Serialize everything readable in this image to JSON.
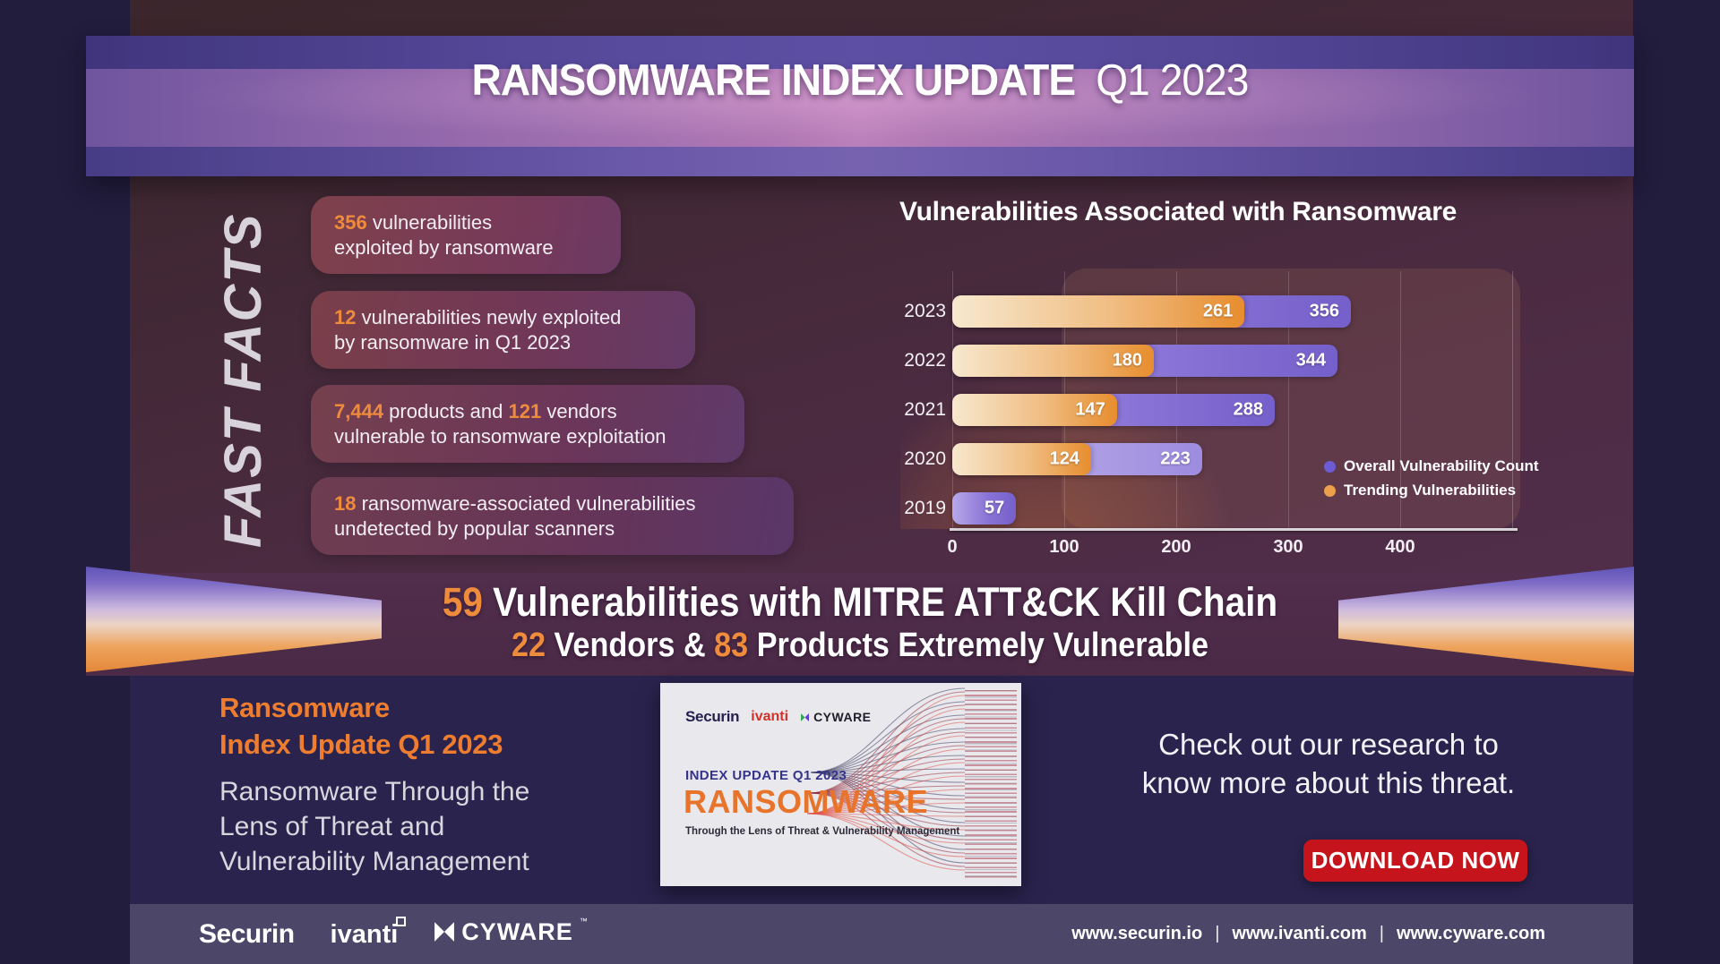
{
  "colors": {
    "accent_orange": "#ef8c3c",
    "button_red": "#c6141d",
    "bar_overall_purple": "#7b64cf",
    "bar_trending_orange": "#e89036",
    "header_purple": "#b078b4",
    "background_navy": "#221c3d",
    "bottom_indigo": "#2a234e",
    "footer_slate": "#4c4669"
  },
  "header": {
    "title_main": "RANSOMWARE INDEX UPDATE",
    "title_qualifier": "Q1 2023"
  },
  "fast_facts": {
    "label": "FAST FACTS",
    "boxes": [
      {
        "lines": [
          [
            {
              "t": "356",
              "hl": true
            },
            {
              "t": " vulnerabilities",
              "hl": false
            }
          ],
          [
            {
              "t": "exploited by ransomware",
              "hl": false
            }
          ]
        ]
      },
      {
        "lines": [
          [
            {
              "t": "12",
              "hl": true
            },
            {
              "t": " vulnerabilities newly exploited",
              "hl": false
            }
          ],
          [
            {
              "t": "by ransomware in Q1 2023",
              "hl": false
            }
          ]
        ]
      },
      {
        "lines": [
          [
            {
              "t": "7,444",
              "hl": true
            },
            {
              "t": " products and ",
              "hl": false
            },
            {
              "t": "121",
              "hl": true
            },
            {
              "t": " vendors",
              "hl": false
            }
          ],
          [
            {
              "t": "vulnerable to ransomware exploitation",
              "hl": false
            }
          ]
        ]
      },
      {
        "lines": [
          [
            {
              "t": "18",
              "hl": true
            },
            {
              "t": " ransomware-associated vulnerabilities",
              "hl": false
            }
          ],
          [
            {
              "t": "undetected by popular scanners",
              "hl": false
            }
          ]
        ]
      }
    ]
  },
  "chart_data": {
    "type": "bar",
    "orientation": "horizontal",
    "title": "Vulnerabilities Associated with Ransomware",
    "categories": [
      "2023",
      "2022",
      "2021",
      "2020",
      "2019"
    ],
    "series": [
      {
        "name": "Overall Vulnerability Count",
        "color": "#7b64cf",
        "values": [
          356,
          344,
          288,
          223,
          57
        ]
      },
      {
        "name": "Trending Vulnerabilities",
        "color": "#e89036",
        "values": [
          261,
          180,
          147,
          124,
          null
        ]
      }
    ],
    "xlim": [
      0,
      500
    ],
    "x_ticks": [
      0,
      100,
      200,
      300,
      400
    ],
    "grid": true,
    "legend_position": "right-middle",
    "value_labels": true
  },
  "kill_chain": {
    "line1": [
      {
        "t": "59",
        "hl": true
      },
      {
        "t": " Vulnerabilities with MITRE ATT&CK Kill Chain",
        "hl": false
      }
    ],
    "line2": [
      {
        "t": "22",
        "hl": true
      },
      {
        "t": " Vendors & ",
        "hl": false
      },
      {
        "t": "83",
        "hl": true
      },
      {
        "t": " Products Extremely Vulnerable",
        "hl": false
      }
    ]
  },
  "bottom": {
    "promo_heading": [
      "Ransomware",
      "Index Update Q1 2023"
    ],
    "promo_sub": [
      "Ransomware Through the",
      "Lens of Threat and",
      "Vulnerability Management"
    ],
    "cta_lines": [
      "Check out our research to",
      "know more about this threat."
    ],
    "download_label": "DOWNLOAD NOW"
  },
  "report_card": {
    "logo_securin": "Securin",
    "logo_ivanti": "ivanti",
    "logo_cyware": "CYWARE",
    "kicker": "INDEX UPDATE Q1 2023",
    "title": "RANSOMWARE",
    "subtitle": "Through the Lens of Threat & Vulnerability Management"
  },
  "footer": {
    "logo_securin": "Securin",
    "logo_ivanti": "ivanti",
    "logo_cyware": "CYWARE",
    "trademark": "™",
    "urls": [
      "www.securin.io",
      "www.ivanti.com",
      "www.cyware.com"
    ],
    "separator": "|"
  }
}
